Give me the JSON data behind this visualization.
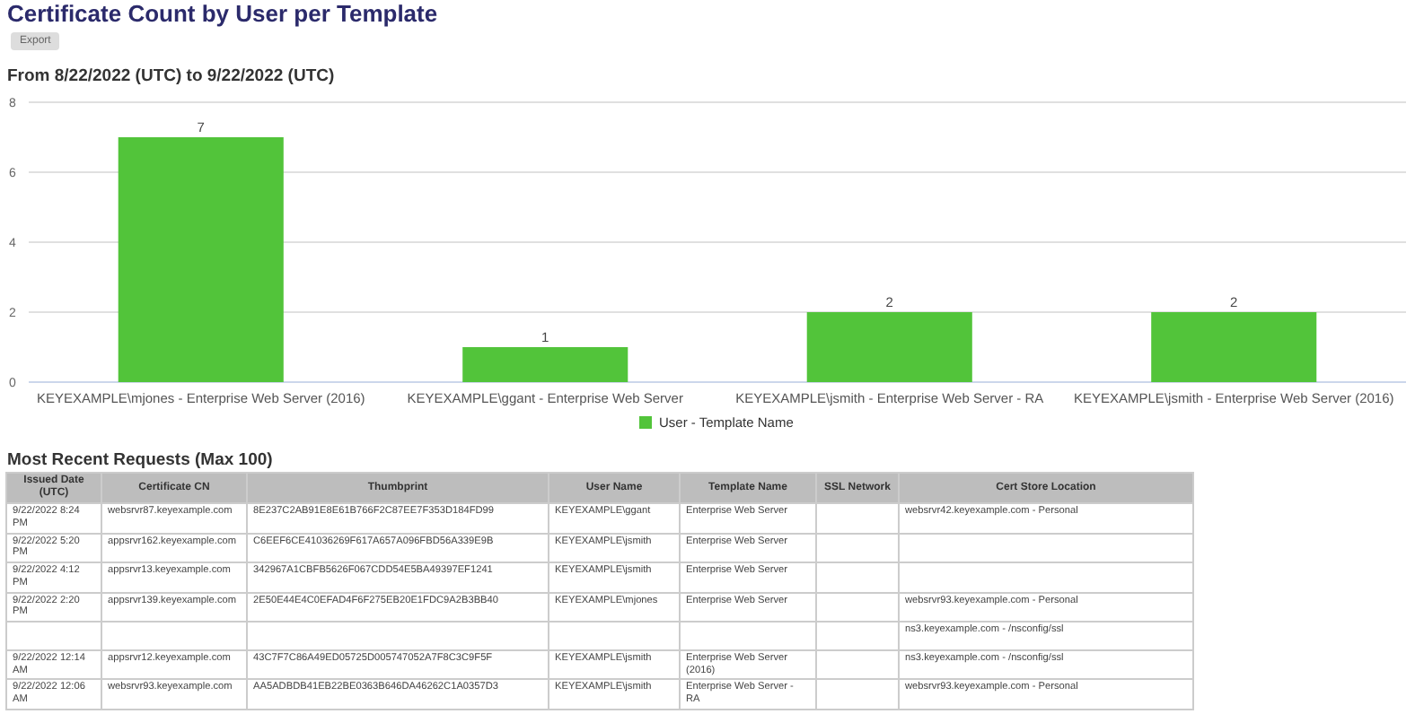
{
  "chart_data": [
    {
      "type": "bar",
      "title": "Certificate Count by User per Template",
      "subtitle": "From 8/22/2022 (UTC) to 9/22/2022 (UTC)",
      "annotations": [
        "Export"
      ],
      "categories": [
        "KEYEXAMPLE\\mjones - Enterprise Web Server (2016)",
        "KEYEXAMPLE\\ggant - Enterprise Web Server",
        "KEYEXAMPLE\\jsmith - Enterprise Web Server - RA",
        "KEYEXAMPLE\\jsmith - Enterprise Web Server (2016)"
      ],
      "series": [
        {
          "name": "User - Template Name",
          "color": "#52c43a",
          "values": [
            7,
            1,
            2,
            2
          ]
        }
      ],
      "ylim": [
        0,
        8
      ],
      "yticks": [
        0,
        2,
        4,
        6,
        8
      ],
      "grid": "y",
      "legend": "bottom",
      "data_labels": true
    },
    {
      "type": "other",
      "title": "Most Recent Requests (Max 100)",
      "annotations": [
        "Issued Date (UTC)",
        "Certificate CN",
        "Thumbprint",
        "User Name",
        "Template Name",
        "SSL Network",
        "Cert Store Location",
        "9/22/2022 8:24 PM",
        "websrvr87.keyexample.com",
        "8E237C2AB91E8E61B766F2C87EE7F353D184FD99",
        "KEYEXAMPLE\\ggant",
        "Enterprise Web Server",
        null,
        "websrvr42.keyexample.com - Personal",
        "9/22/2022 5:20 PM",
        "appsrvr162.keyexample.com",
        "C6EEF6CE41036269F617A657A096FBD56A339E9B",
        "KEYEXAMPLE\\jsmith",
        "Enterprise Web Server",
        null,
        null,
        "9/22/2022 4:12 PM",
        "appsrvr13.keyexample.com",
        "342967A1CBFB5626F067CDD54E5BA49397EF1241",
        "KEYEXAMPLE\\jsmith",
        "Enterprise Web Server",
        null,
        null,
        "9/22/2022 2:20 PM",
        "appsrvr139.keyexample.com",
        "2E50E44E4C0EFAD4F6F275EB20E1FDC9A2B3BB40",
        "KEYEXAMPLE\\mjones",
        "Enterprise Web Server",
        null,
        "websrvr93.keyexample.com - Personal",
        null,
        null,
        null,
        null,
        null,
        null,
        "ns3.keyexample.com - /nsconfig/ssl",
        "9/22/2022 12:14 AM",
        "appsrvr12.keyexample.com",
        "43C7F7C86A49ED05725D005747052A7F8C3C9F5F",
        "KEYEXAMPLE\\jsmith",
        "Enterprise Web Server (2016)",
        null,
        "ns3.keyexample.com - /nsconfig/ssl",
        "9/22/2022 12:06 AM",
        "websrvr93.keyexample.com",
        "AA5ADBDB41EB22BE0363B646DA46262C1A0357D3",
        "KEYEXAMPLE\\jsmith",
        "Enterprise Web Server - RA",
        null,
        "websrvr93.keyexample.com - Personal"
      ]
    }
  ]
}
